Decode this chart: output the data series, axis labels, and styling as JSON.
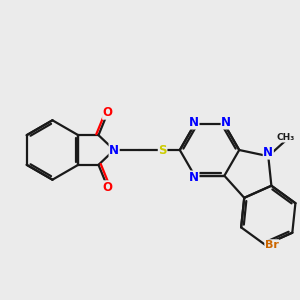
{
  "background_color": "#ebebeb",
  "bond_color": "#1a1a1a",
  "N_color": "#0000ff",
  "O_color": "#ff0000",
  "S_color": "#cccc00",
  "Br_color": "#cc6600",
  "lw": 1.6,
  "xlim": [
    -3.2,
    4.8
  ],
  "ylim": [
    -2.5,
    2.8
  ],
  "figsize": [
    3.0,
    3.0
  ],
  "dpi": 100
}
